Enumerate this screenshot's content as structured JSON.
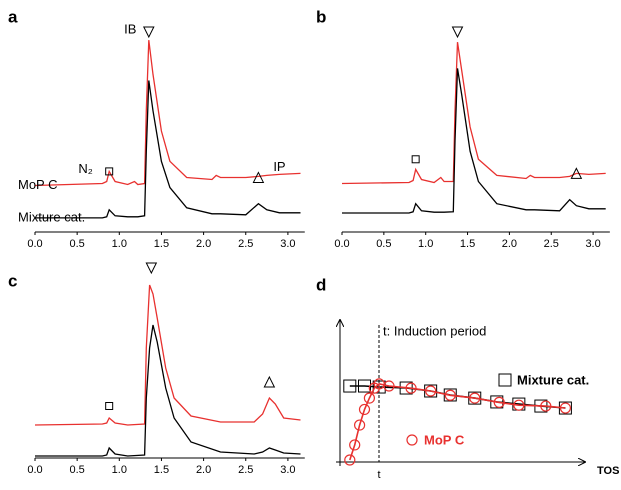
{
  "chart_data": [
    {
      "type": "line",
      "letter": "a",
      "x": [
        0,
        0.8,
        0.85,
        0.88,
        0.95,
        1.1,
        1.18,
        1.22,
        1.3,
        1.32,
        1.35,
        1.4,
        1.5,
        1.6,
        1.8,
        2.1,
        2.15,
        2.2,
        2.5,
        2.65,
        2.75,
        2.9,
        3.15
      ],
      "series": [
        {
          "name": "MoP C",
          "color": "#e8312f",
          "values": [
            23,
            24,
            25,
            30,
            25,
            23.5,
            25,
            23.5,
            24,
            60,
            95,
            78,
            50,
            35,
            27,
            26,
            28,
            27,
            27,
            27.5,
            28,
            28.5,
            29
          ]
        },
        {
          "name": "Mixture cat.",
          "color": "#000000",
          "values": [
            7,
            7,
            7.5,
            11,
            8,
            7.5,
            7.5,
            7.5,
            8,
            40,
            75,
            60,
            35,
            22,
            12,
            9,
            9,
            9,
            8.5,
            14,
            11,
            9.5,
            9.5
          ]
        }
      ],
      "annotations": [
        "IB",
        "N₂",
        "IP"
      ],
      "xlim": [
        0,
        3.2
      ],
      "ylim": [
        0,
        100
      ],
      "xticks": [
        {
          "value": 0,
          "label": "0.0"
        },
        0.5,
        {
          "value": 1,
          "label": "1.0"
        },
        1.5,
        {
          "value": 2,
          "label": "2.0"
        },
        2.5,
        {
          "value": 3,
          "label": "3.0"
        }
      ]
    },
    {
      "type": "line",
      "letter": "b",
      "x": [
        0,
        0.8,
        0.85,
        0.88,
        0.95,
        1.1,
        1.18,
        1.22,
        1.33,
        1.35,
        1.38,
        1.43,
        1.53,
        1.63,
        1.85,
        2.2,
        2.25,
        2.3,
        2.6,
        2.72,
        2.8,
        2.95,
        3.15
      ],
      "series": [
        {
          "color": "#e8312f",
          "values": [
            24,
            24.5,
            25.5,
            31,
            26,
            24.5,
            27,
            25,
            25,
            60,
            94,
            80,
            52,
            36,
            28,
            26.5,
            28,
            27,
            27,
            27.5,
            29,
            28.5,
            29
          ]
        },
        {
          "color": "#000000",
          "values": [
            9.4,
            9.4,
            10,
            14,
            10.5,
            9.8,
            9.8,
            9.8,
            10,
            45,
            81,
            68,
            40,
            25,
            14,
            11,
            11,
            11,
            10.5,
            16,
            13,
            11.5,
            11.5
          ]
        }
      ],
      "xlim": [
        0,
        3.2
      ],
      "ylim": [
        0,
        100
      ],
      "xticks": [
        {
          "value": 0,
          "label": "0.0"
        },
        0.5,
        {
          "value": 1,
          "label": "1.0"
        },
        1.5,
        {
          "value": 2,
          "label": "2.0"
        },
        2.5,
        {
          "value": 3,
          "label": "3.0"
        }
      ]
    },
    {
      "type": "line",
      "letter": "c",
      "x": [
        0,
        0.8,
        0.85,
        0.88,
        0.95,
        1.1,
        1.3,
        1.32,
        1.36,
        1.4,
        1.45,
        1.55,
        1.65,
        1.85,
        2.2,
        2.6,
        2.7,
        2.78,
        2.85,
        2.95,
        3.15
      ],
      "series": [
        {
          "color": "#e8312f",
          "values": [
            16.5,
            17,
            17.5,
            20,
            17.5,
            16.5,
            17,
            55,
            86.5,
            82,
            70,
            45,
            30,
            21,
            18,
            18,
            22,
            30,
            27,
            20,
            19
          ]
        },
        {
          "color": "#000000",
          "values": [
            1,
            1,
            1.5,
            5,
            2,
            1,
            1.5,
            30,
            55,
            66.5,
            58,
            35,
            20,
            8,
            3,
            2,
            3,
            5,
            4,
            2.5,
            2
          ]
        }
      ],
      "xlim": [
        0,
        3.2
      ],
      "ylim": [
        0,
        100
      ],
      "xticks": [
        {
          "value": 0,
          "label": "0.0"
        },
        0.5,
        {
          "value": 1,
          "label": "1.0"
        },
        1.5,
        {
          "value": 2,
          "label": "2.0"
        },
        2.5,
        {
          "value": 3,
          "label": "3.0"
        }
      ]
    },
    {
      "type": "scatter",
      "letter": "d",
      "annotation": "t: Induction period",
      "t_label": "t",
      "x_label": "TOS",
      "series": [
        {
          "name": "Mixture cat.",
          "color": "#000000",
          "marker": "square",
          "x": [
            4,
            10,
            16,
            27,
            37,
            45,
            55,
            64,
            73,
            82,
            92
          ],
          "values": [
            53.5,
            53.5,
            52.8,
            52.1,
            50,
            47.2,
            45,
            42.3,
            40.8,
            39.4,
            38
          ]
        },
        {
          "name": "MoP C",
          "color": "#e8312f",
          "marker": "circle",
          "x": [
            4,
            6,
            8,
            10,
            12,
            14,
            16,
            20,
            29,
            37,
            45,
            55,
            65,
            73,
            84,
            92
          ],
          "values": [
            1.4,
            12,
            26,
            37,
            45,
            52,
            55,
            53.5,
            52,
            50,
            47,
            45,
            42,
            40,
            39.4,
            38
          ]
        }
      ],
      "xlim": [
        0,
        100
      ],
      "ylim": [
        0,
        100
      ]
    }
  ]
}
